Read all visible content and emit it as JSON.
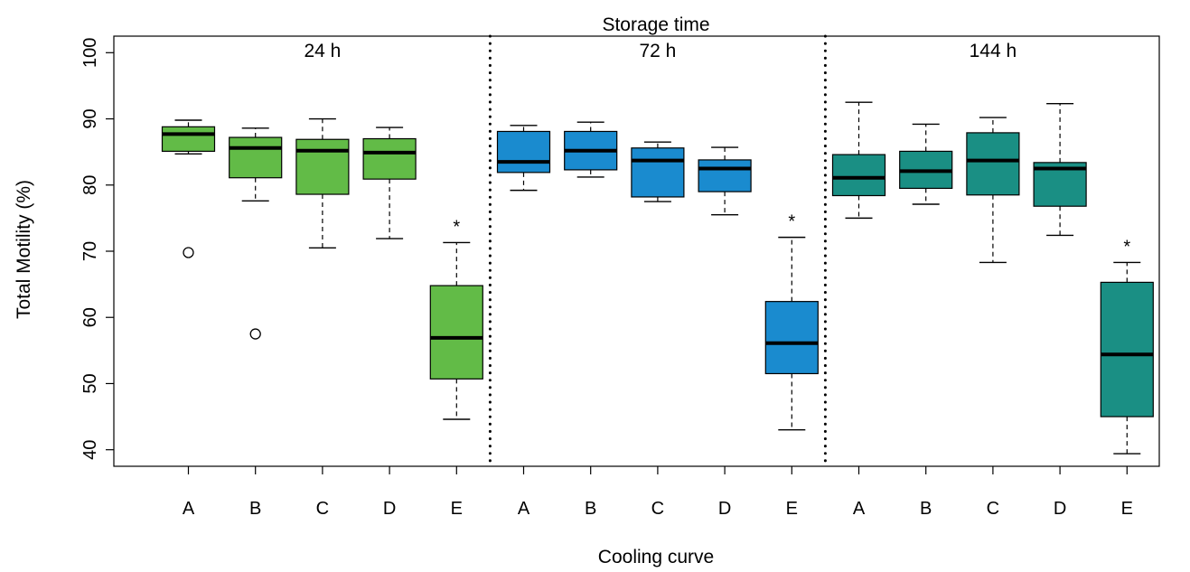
{
  "chart_data": {
    "type": "boxplot",
    "title": "Storage time",
    "xlabel": "Cooling curve",
    "ylabel": "Total Motility (%)",
    "ylim": [
      37.5,
      102.5
    ],
    "yticks": [
      40,
      50,
      60,
      70,
      80,
      90,
      100
    ],
    "categories": [
      "A",
      "B",
      "C",
      "D",
      "E"
    ],
    "groups": [
      {
        "label": "24 h",
        "color": "#62bb47",
        "significant_marker": "*",
        "boxes": [
          {
            "category": "A",
            "whisker_low": 84.7,
            "q1": 85.1,
            "median": 87.7,
            "q3": 88.8,
            "whisker_high": 89.8,
            "outliers": [
              69.8
            ]
          },
          {
            "category": "B",
            "whisker_low": 77.6,
            "q1": 81.1,
            "median": 85.6,
            "q3": 87.2,
            "whisker_high": 88.6,
            "outliers": [
              57.5
            ]
          },
          {
            "category": "C",
            "whisker_low": 70.5,
            "q1": 78.6,
            "median": 85.2,
            "q3": 86.9,
            "whisker_high": 90.0,
            "outliers": []
          },
          {
            "category": "D",
            "whisker_low": 71.9,
            "q1": 80.9,
            "median": 84.9,
            "q3": 87.0,
            "whisker_high": 88.7,
            "outliers": []
          },
          {
            "category": "E",
            "whisker_low": 44.6,
            "q1": 50.7,
            "median": 56.9,
            "q3": 64.8,
            "whisker_high": 71.3,
            "outliers": [],
            "significant": true
          }
        ]
      },
      {
        "label": "72 h",
        "color": "#1a8bcf",
        "significant_marker": "*",
        "boxes": [
          {
            "category": "A",
            "whisker_low": 79.2,
            "q1": 81.9,
            "median": 83.5,
            "q3": 88.1,
            "whisker_high": 89.0,
            "outliers": []
          },
          {
            "category": "B",
            "whisker_low": 81.2,
            "q1": 82.3,
            "median": 85.2,
            "q3": 88.1,
            "whisker_high": 89.5,
            "outliers": []
          },
          {
            "category": "C",
            "whisker_low": 77.5,
            "q1": 78.2,
            "median": 83.7,
            "q3": 85.6,
            "whisker_high": 86.5,
            "outliers": []
          },
          {
            "category": "D",
            "whisker_low": 75.5,
            "q1": 79.0,
            "median": 82.5,
            "q3": 83.8,
            "whisker_high": 85.7,
            "outliers": []
          },
          {
            "category": "E",
            "whisker_low": 43.0,
            "q1": 51.5,
            "median": 56.1,
            "q3": 62.4,
            "whisker_high": 72.1,
            "outliers": [],
            "significant": true
          }
        ]
      },
      {
        "label": "144 h",
        "color": "#1a8f84",
        "significant_marker": "*",
        "boxes": [
          {
            "category": "A",
            "whisker_low": 75.0,
            "q1": 78.4,
            "median": 81.1,
            "q3": 84.6,
            "whisker_high": 92.5,
            "outliers": []
          },
          {
            "category": "B",
            "whisker_low": 77.1,
            "q1": 79.5,
            "median": 82.1,
            "q3": 85.1,
            "whisker_high": 89.2,
            "outliers": []
          },
          {
            "category": "C",
            "whisker_low": 68.3,
            "q1": 78.5,
            "median": 83.7,
            "q3": 87.9,
            "whisker_high": 90.2,
            "outliers": []
          },
          {
            "category": "D",
            "whisker_low": 72.4,
            "q1": 76.8,
            "median": 82.5,
            "q3": 83.4,
            "whisker_high": 92.3,
            "outliers": []
          },
          {
            "category": "E",
            "whisker_low": 39.4,
            "q1": 45.0,
            "median": 54.4,
            "q3": 65.3,
            "whisker_high": 68.3,
            "outliers": [],
            "significant": true
          }
        ]
      }
    ],
    "grid": false,
    "group_separators": "dotted"
  }
}
